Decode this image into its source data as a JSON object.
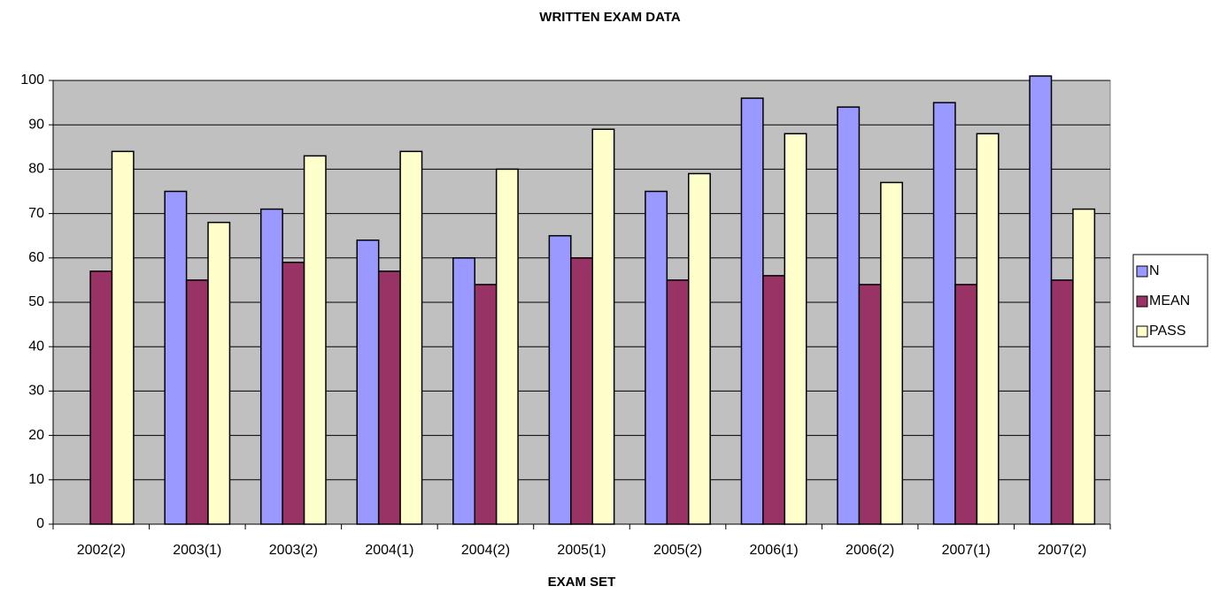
{
  "chart_data": {
    "type": "bar",
    "title": "WRITTEN EXAM DATA",
    "x_label": "EXAM SET",
    "categories": [
      "2002(2)",
      "2003(1)",
      "2003(2)",
      "2004(1)",
      "2004(2)",
      "2005(1)",
      "2005(2)",
      "2006(1)",
      "2006(2)",
      "2007(1)",
      "2007(2)"
    ],
    "series": [
      {
        "name": "N",
        "color": "#9999ff",
        "values": [
          null,
          75,
          71,
          64,
          60,
          65,
          75,
          96,
          94,
          95,
          101
        ]
      },
      {
        "name": "MEAN",
        "color": "#993366",
        "values": [
          57,
          55,
          59,
          57,
          54,
          60,
          55,
          56,
          54,
          54,
          55
        ]
      },
      {
        "name": "PASS",
        "color": "#ffffcc",
        "values": [
          84,
          68,
          83,
          84,
          80,
          89,
          79,
          88,
          77,
          88,
          71
        ]
      }
    ],
    "ylim": [
      0,
      100
    ],
    "yticks": [
      0,
      10,
      20,
      30,
      40,
      50,
      60,
      70,
      80,
      90,
      100
    ],
    "grid": true,
    "legend": "right"
  }
}
